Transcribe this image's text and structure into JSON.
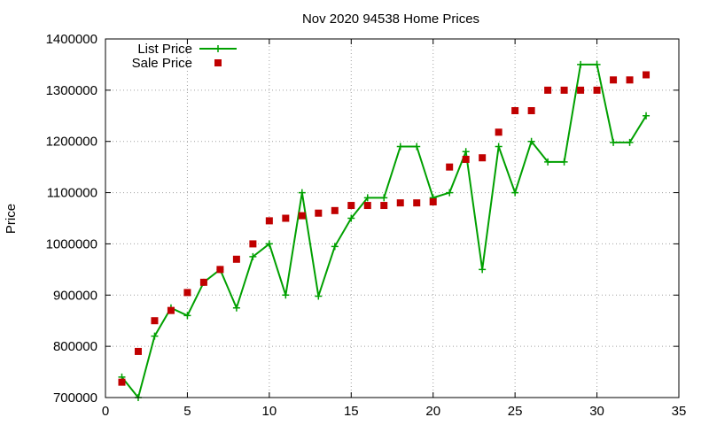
{
  "chart_data": {
    "type": "line",
    "title": "Nov 2020 94538 Home Prices",
    "xlabel": "",
    "ylabel": "Price",
    "xlim": [
      0,
      35
    ],
    "ylim": [
      700000,
      1400000
    ],
    "x_ticks": [
      "0",
      "5",
      "10",
      "15",
      "20",
      "25",
      "30",
      "35"
    ],
    "y_ticks": [
      "700000",
      "800000",
      "900000",
      "1000000",
      "1100000",
      "1200000",
      "1300000",
      "1400000"
    ],
    "grid": true,
    "legend_position": "top-left",
    "series": [
      {
        "name": "List Price",
        "style": "lines+points",
        "marker": "plus",
        "color": "#00a000",
        "x": [
          1,
          2,
          3,
          4,
          5,
          6,
          7,
          8,
          9,
          10,
          11,
          12,
          13,
          14,
          15,
          16,
          17,
          18,
          19,
          20,
          21,
          22,
          23,
          24,
          25,
          26,
          27,
          28,
          29,
          30,
          31,
          32,
          33
        ],
        "values": [
          740000,
          700000,
          820000,
          875000,
          860000,
          925000,
          950000,
          875000,
          975000,
          1000000,
          900000,
          1100000,
          898000,
          995000,
          1050000,
          1090000,
          1090000,
          1190000,
          1190000,
          1090000,
          1100000,
          1180000,
          950000,
          1190000,
          1100000,
          1200000,
          1160000,
          1160000,
          1350000,
          1350000,
          1198000,
          1198000,
          1250000
        ]
      },
      {
        "name": "Sale Price",
        "style": "points",
        "marker": "square",
        "color": "#c00000",
        "x": [
          1,
          2,
          3,
          4,
          5,
          6,
          7,
          8,
          9,
          10,
          11,
          12,
          13,
          14,
          15,
          16,
          17,
          18,
          19,
          20,
          21,
          22,
          23,
          24,
          25,
          26,
          27,
          28,
          29,
          30,
          31,
          32,
          33
        ],
        "values": [
          730000,
          790000,
          850000,
          870000,
          905000,
          925000,
          950000,
          970000,
          1000000,
          1045000,
          1050000,
          1055000,
          1060000,
          1065000,
          1075000,
          1075000,
          1075000,
          1080000,
          1080000,
          1082000,
          1150000,
          1165000,
          1168000,
          1218000,
          1260000,
          1260000,
          1300000,
          1300000,
          1300000,
          1300000,
          1320000,
          1320000,
          1330000
        ]
      }
    ]
  }
}
